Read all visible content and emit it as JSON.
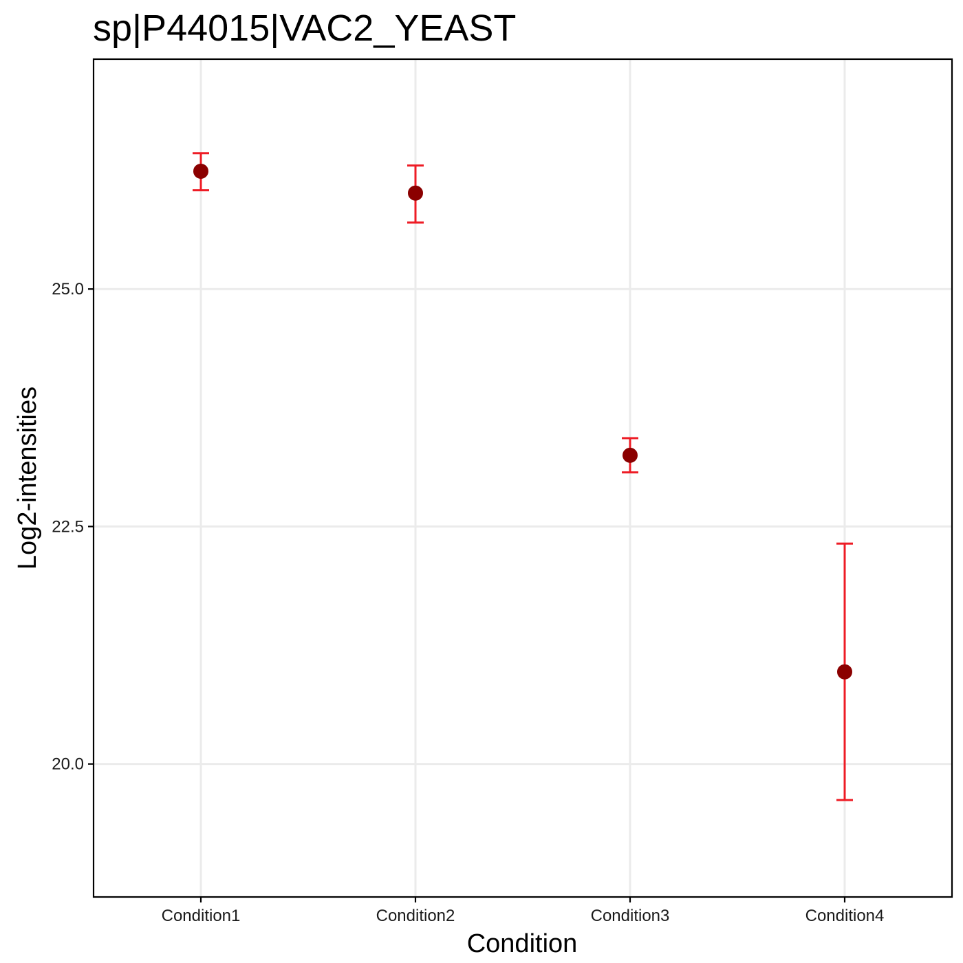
{
  "chart_data": {
    "type": "scatter",
    "title": "sp|P44015|VAC2_YEAST",
    "xlabel": "Condition",
    "ylabel": "Log2-intensities",
    "categories": [
      "Condition1",
      "Condition2",
      "Condition3",
      "Condition4"
    ],
    "y_ticks": [
      "20.0",
      "22.5",
      "25.0"
    ],
    "ylim": [
      18.6,
      27.42
    ],
    "grid": true,
    "legend": "none",
    "series": [
      {
        "values": [
          26.24,
          26.01,
          23.25,
          20.97
        ],
        "error_low": [
          26.04,
          25.7,
          23.07,
          19.62
        ],
        "error_high": [
          26.43,
          26.3,
          23.43,
          22.32
        ]
      }
    ],
    "colors": {
      "point": "#8b0000",
      "error_bar": "#ee1c25",
      "grid": "#ebebeb",
      "border": "#000000"
    }
  }
}
